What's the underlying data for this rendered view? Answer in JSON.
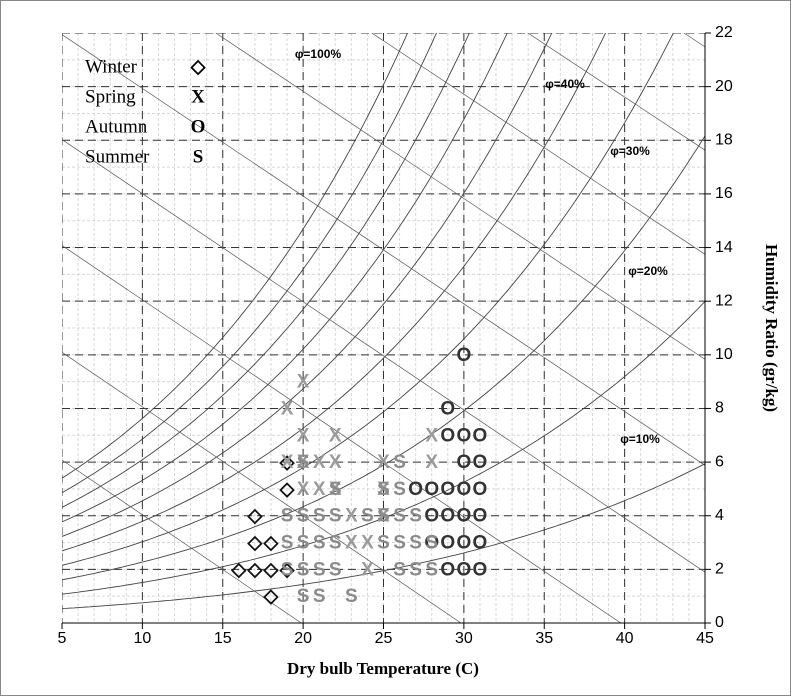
{
  "chart_data": {
    "type": "scatter",
    "xlabel": "Dry bulb Temperature (C)",
    "ylabel": "Humidity Ratio   (gr/kg)",
    "xlim": [
      5,
      45
    ],
    "xticks": [
      5,
      10,
      15,
      20,
      25,
      30,
      35,
      40,
      45
    ],
    "ylim": [
      0,
      22
    ],
    "yticks": [
      0,
      2,
      4,
      6,
      8,
      10,
      12,
      14,
      16,
      18,
      20,
      22
    ],
    "grid": true,
    "legend": "upper left",
    "annotations": [
      {
        "text": "φ=100%"
      },
      {
        "text": "φ=40%"
      },
      {
        "text": "φ=30%"
      },
      {
        "text": "φ=20%"
      },
      {
        "text": "φ=10%"
      }
    ],
    "series": [
      {
        "name": "Winter",
        "marker": "◇",
        "color": "#111111",
        "x": [
          18,
          16,
          17,
          18,
          19,
          17,
          18,
          17,
          19,
          19
        ],
        "values": [
          1,
          2,
          2,
          2,
          2,
          3,
          3,
          4,
          5,
          6
        ]
      },
      {
        "name": "Spring",
        "marker": "X",
        "color": "#9a9a9a",
        "x": [
          20,
          19,
          20,
          22,
          28,
          19,
          20,
          21,
          22,
          25,
          28,
          20,
          21,
          22,
          25,
          23,
          25,
          23,
          24,
          24
        ],
        "values": [
          9,
          8,
          7,
          7,
          7,
          6,
          6,
          6,
          6,
          6,
          6,
          5,
          5,
          5,
          5,
          4,
          4,
          3,
          3,
          2
        ]
      },
      {
        "name": "Autumn",
        "marker": "O",
        "color": "#333333",
        "x": [
          30,
          29,
          29,
          30,
          31,
          30,
          31,
          27,
          28,
          29,
          30,
          31,
          28,
          29,
          30,
          31,
          28,
          29,
          30,
          31,
          29,
          30,
          31
        ],
        "values": [
          10,
          8,
          7,
          7,
          7,
          6,
          6,
          5,
          5,
          5,
          5,
          5,
          4,
          4,
          4,
          4,
          3,
          3,
          3,
          3,
          2,
          2,
          2
        ]
      },
      {
        "name": "Summer",
        "marker": "S",
        "color": "#8a8a8a",
        "x": [
          26,
          20,
          22,
          25,
          26,
          19,
          20,
          21,
          22,
          24,
          25,
          26,
          27,
          19,
          20,
          21,
          22,
          25,
          26,
          27,
          28,
          19,
          20,
          21,
          22,
          26,
          27,
          28,
          20,
          21,
          23
        ],
        "values": [
          6,
          6,
          5,
          5,
          5,
          4,
          4,
          4,
          4,
          4,
          4,
          4,
          4,
          3,
          3,
          3,
          3,
          3,
          3,
          3,
          3,
          2,
          2,
          2,
          2,
          2,
          2,
          2,
          1,
          1,
          1
        ]
      }
    ]
  }
}
